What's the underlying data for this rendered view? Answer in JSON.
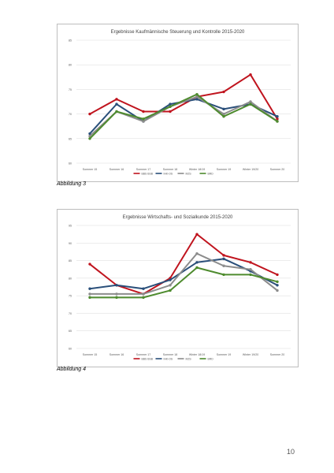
{
  "chart_data": [
    {
      "type": "line",
      "title": "Ergebnisse Kaufmännische Steuerung und Kontrolle 2015-2020",
      "xlabel": "",
      "ylabel": "",
      "categories": [
        "Sommer 15",
        "Sommer 16",
        "Sommer 17",
        "Sommer 18",
        "Winter 18/19",
        "Sommer 19",
        "Winter 19/20",
        "Sommer 20"
      ],
      "yticks": [
        "85",
        "80",
        "75",
        "70",
        "65",
        "60"
      ],
      "ylim": [
        60,
        85
      ],
      "grid": true,
      "legend_position": "bottom",
      "series": [
        {
          "name": "BBS BSB",
          "color": "#c0141e",
          "values": [
            70,
            73,
            70.5,
            70.5,
            73.5,
            74.5,
            78,
            69
          ]
        },
        {
          "name": "IHK-OS",
          "color": "#2a4f7a",
          "values": [
            66,
            72,
            68.5,
            72,
            73,
            71,
            72,
            69.5
          ]
        },
        {
          "name": "MZS",
          "color": "#8c8c8c",
          "values": [
            65.5,
            70.5,
            68.5,
            71.5,
            73.5,
            70,
            72.5,
            68.5
          ]
        },
        {
          "name": "BRD",
          "color": "#4e8b2e",
          "values": [
            65,
            70.5,
            69,
            71.5,
            74,
            69.5,
            72,
            68.5
          ]
        }
      ]
    },
    {
      "type": "line",
      "title": "Ergebnisse Wirtschafts- und Sozialkunde 2015-2020",
      "xlabel": "",
      "ylabel": "",
      "categories": [
        "Sommer 15",
        "Sommer 16",
        "Sommer 17",
        "Sommer 18",
        "Winter 18/19",
        "Sommer 19",
        "Winter 19/20",
        "Sommer 20"
      ],
      "yticks": [
        "95",
        "90",
        "85",
        "80",
        "75",
        "70",
        "65",
        "60"
      ],
      "ylim": [
        60,
        95
      ],
      "grid": true,
      "legend_position": "bottom",
      "series": [
        {
          "name": "BBS BSB",
          "color": "#c0141e",
          "values": [
            84,
            78,
            75.5,
            80,
            92.5,
            86.5,
            84.5,
            81
          ]
        },
        {
          "name": "IHK-OS",
          "color": "#2a4f7a",
          "values": [
            77,
            78,
            77,
            79.5,
            84.5,
            85.5,
            82,
            78
          ]
        },
        {
          "name": "MZS",
          "color": "#8c8c8c",
          "values": [
            75.5,
            75.5,
            75.5,
            78,
            87,
            83.5,
            82.5,
            76.5
          ]
        },
        {
          "name": "BRD",
          "color": "#4e8b2e",
          "values": [
            74.5,
            74.5,
            74.5,
            76.5,
            83,
            81,
            81,
            79
          ]
        }
      ]
    }
  ],
  "captions": [
    "Abbildung 3",
    "Abbildung 4"
  ],
  "page_number": "10"
}
